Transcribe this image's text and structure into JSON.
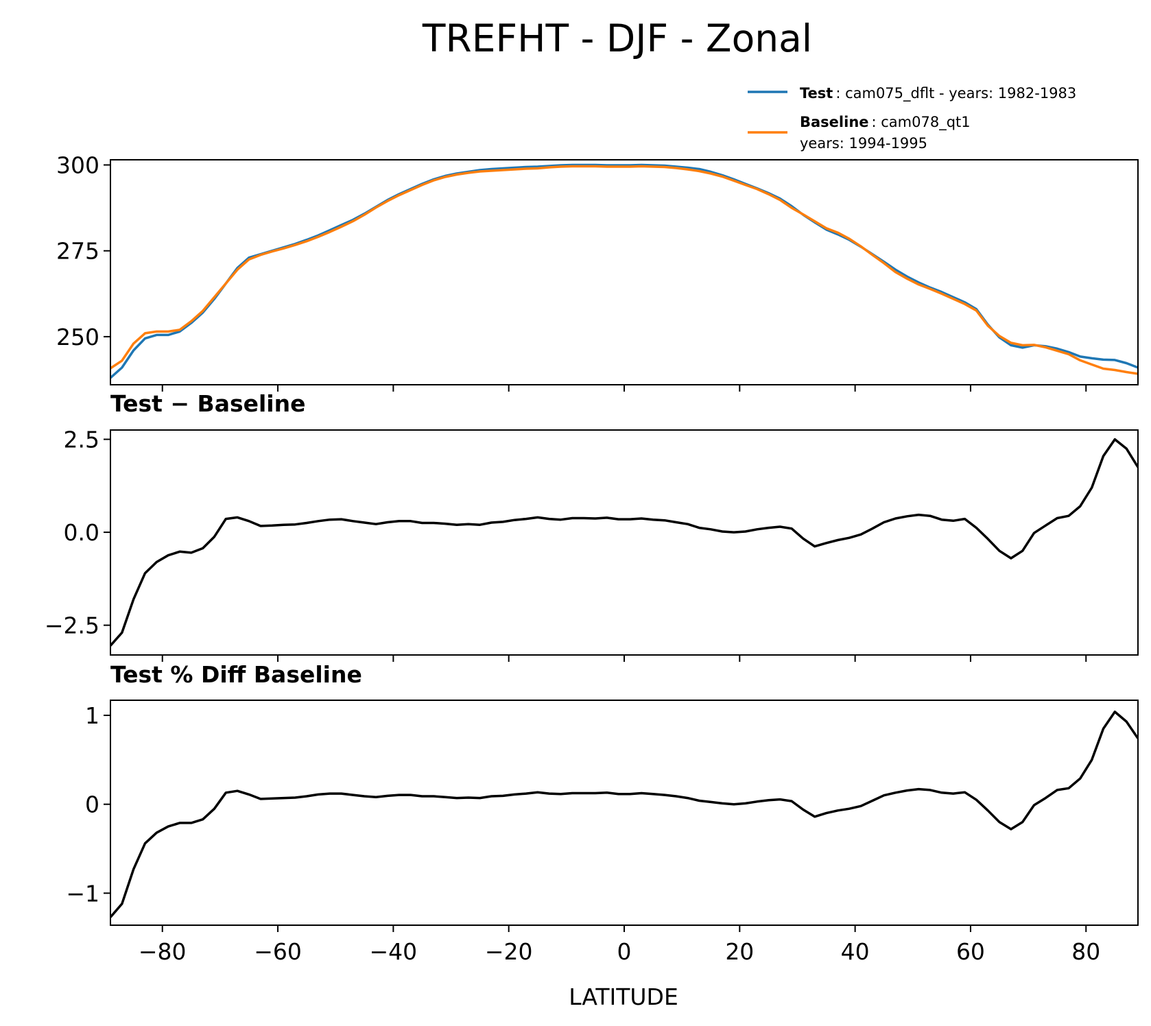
{
  "title": "TREFHT - DJF - Zonal",
  "xlabel": "LATITUDE",
  "colors": {
    "test": "#1f77b4",
    "baseline": "#ff7f0e",
    "diff": "#000000"
  },
  "legend": [
    {
      "bold": "Test",
      "rest": ": cam075_dflt - years: 1982-1983",
      "extra": ""
    },
    {
      "bold": "Baseline",
      "rest": ": cam078_qt1",
      "extra": "years: 1994-1995"
    }
  ],
  "chart_data": [
    {
      "type": "line",
      "name": "zonal-mean",
      "title": "",
      "xlabel": "",
      "ylabel": "",
      "xlim": [
        -89,
        89
      ],
      "ylim": [
        236,
        301.5
      ],
      "xticks": [
        -80,
        -60,
        -40,
        -20,
        0,
        20,
        40,
        60,
        80
      ],
      "yticks": [
        250,
        275,
        300
      ],
      "ytick_labels": [
        "250",
        "275",
        "300"
      ],
      "x": [
        -89,
        -87,
        -85,
        -83,
        -81,
        -79,
        -77,
        -75,
        -73,
        -71,
        -69,
        -67,
        -65,
        -63,
        -61,
        -59,
        -57,
        -55,
        -53,
        -51,
        -49,
        -47,
        -45,
        -43,
        -41,
        -39,
        -37,
        -35,
        -33,
        -31,
        -29,
        -27,
        -25,
        -23,
        -21,
        -19,
        -17,
        -15,
        -13,
        -11,
        -9,
        -7,
        -5,
        -3,
        -1,
        1,
        3,
        5,
        7,
        9,
        11,
        13,
        15,
        17,
        19,
        21,
        23,
        25,
        27,
        29,
        31,
        33,
        35,
        37,
        39,
        41,
        43,
        45,
        47,
        49,
        51,
        53,
        55,
        57,
        59,
        61,
        63,
        65,
        67,
        69,
        71,
        73,
        75,
        77,
        79,
        81,
        83,
        85,
        87,
        89
      ],
      "series": [
        {
          "name": "Test",
          "values": [
            238,
            241,
            246,
            249.5,
            250.5,
            250.5,
            251.5,
            254,
            257,
            261,
            265.5,
            270,
            273,
            274,
            275,
            276,
            277,
            278.2,
            279.5,
            281,
            282.5,
            284,
            285.8,
            287.8,
            289.8,
            291.5,
            293,
            294.5,
            295.8,
            296.8,
            297.5,
            298,
            298.5,
            298.8,
            299,
            299.2,
            299.4,
            299.5,
            299.7,
            299.9,
            300,
            300,
            300,
            299.9,
            299.9,
            299.9,
            300,
            299.9,
            299.8,
            299.5,
            299.2,
            298.8,
            298,
            297,
            295.8,
            294.5,
            293.2,
            291.8,
            290.2,
            288,
            285.5,
            283.3,
            281.2,
            279.8,
            278.2,
            276.2,
            274,
            271.8,
            269.5,
            267.5,
            265.8,
            264.3,
            263,
            261.5,
            260,
            258,
            253.5,
            249.8,
            247.5,
            246.8,
            247.5,
            247.2,
            246.5,
            245.5,
            244.2,
            243.7,
            243.3,
            243.2,
            242.3,
            241
          ]
        },
        {
          "name": "Baseline",
          "values": [
            240.8,
            243,
            248,
            251,
            251.5,
            251.5,
            252,
            254.5,
            257.5,
            261.5,
            265.5,
            269.5,
            272.5,
            273.8,
            274.8,
            275.7,
            276.7,
            277.8,
            279.1,
            280.5,
            282,
            283.6,
            285.5,
            287.6,
            289.5,
            291.2,
            292.7,
            294.2,
            295.5,
            296.5,
            297.2,
            297.7,
            298.1,
            298.3,
            298.5,
            298.7,
            298.9,
            299,
            299.3,
            299.5,
            299.6,
            299.6,
            299.6,
            299.5,
            299.5,
            299.5,
            299.6,
            299.5,
            299.4,
            299.1,
            298.7,
            298.2,
            297.5,
            296.6,
            295.4,
            294.2,
            293,
            291.5,
            289.8,
            287.5,
            285.6,
            283.6,
            281.6,
            280.3,
            278.5,
            276.3,
            273.8,
            271.4,
            268.8,
            266.9,
            265.2,
            263.9,
            262.5,
            261,
            259.5,
            257.6,
            253.2,
            250.2,
            248.2,
            247.5,
            247.6,
            246.9,
            245.9,
            244.9,
            243.1,
            241.9,
            240.7,
            240.3,
            239.7,
            239.2
          ]
        }
      ]
    },
    {
      "type": "line",
      "name": "test-minus-baseline",
      "title": "Test − Baseline",
      "xlabel": "",
      "ylabel": "",
      "xlim": [
        -89,
        89
      ],
      "ylim": [
        -3.3,
        2.75
      ],
      "xticks": [
        -80,
        -60,
        -40,
        -20,
        0,
        20,
        40,
        60,
        80
      ],
      "yticks": [
        -2.5,
        0.0,
        2.5
      ],
      "ytick_labels": [
        "−2.5",
        "0.0",
        "2.5"
      ],
      "x": [
        -89,
        -87,
        -85,
        -83,
        -81,
        -79,
        -77,
        -75,
        -73,
        -71,
        -69,
        -67,
        -65,
        -63,
        -61,
        -59,
        -57,
        -55,
        -53,
        -51,
        -49,
        -47,
        -45,
        -43,
        -41,
        -39,
        -37,
        -35,
        -33,
        -31,
        -29,
        -27,
        -25,
        -23,
        -21,
        -19,
        -17,
        -15,
        -13,
        -11,
        -9,
        -7,
        -5,
        -3,
        -1,
        1,
        3,
        5,
        7,
        9,
        11,
        13,
        15,
        17,
        19,
        21,
        23,
        25,
        27,
        29,
        31,
        33,
        35,
        37,
        39,
        41,
        43,
        45,
        47,
        49,
        51,
        53,
        55,
        57,
        59,
        61,
        63,
        65,
        67,
        69,
        71,
        73,
        75,
        77,
        79,
        81,
        83,
        85,
        87,
        89
      ],
      "series": [
        {
          "name": "Test − Baseline",
          "values": [
            -3.05,
            -2.7,
            -1.8,
            -1.1,
            -0.8,
            -0.62,
            -0.52,
            -0.55,
            -0.43,
            -0.12,
            0.36,
            0.4,
            0.3,
            0.17,
            0.18,
            0.2,
            0.21,
            0.25,
            0.3,
            0.34,
            0.35,
            0.3,
            0.26,
            0.22,
            0.27,
            0.3,
            0.3,
            0.25,
            0.25,
            0.23,
            0.2,
            0.22,
            0.2,
            0.26,
            0.28,
            0.33,
            0.36,
            0.4,
            0.36,
            0.34,
            0.38,
            0.38,
            0.37,
            0.39,
            0.35,
            0.35,
            0.37,
            0.34,
            0.32,
            0.27,
            0.22,
            0.12,
            0.08,
            0.02,
            0.0,
            0.02,
            0.08,
            0.12,
            0.15,
            0.1,
            -0.17,
            -0.38,
            -0.29,
            -0.21,
            -0.15,
            -0.06,
            0.1,
            0.27,
            0.37,
            0.43,
            0.47,
            0.44,
            0.34,
            0.31,
            0.36,
            0.12,
            -0.18,
            -0.5,
            -0.7,
            -0.5,
            -0.02,
            0.18,
            0.38,
            0.44,
            0.7,
            1.2,
            2.05,
            2.5,
            2.25,
            1.75
          ]
        }
      ]
    },
    {
      "type": "line",
      "name": "test-pct-diff-baseline",
      "title": "Test % Diff Baseline",
      "xlabel": "LATITUDE",
      "ylabel": "",
      "xlim": [
        -89,
        89
      ],
      "ylim": [
        -1.36,
        1.17
      ],
      "xticks": [
        -80,
        -60,
        -40,
        -20,
        0,
        20,
        40,
        60,
        80
      ],
      "xtick_labels": [
        "−80",
        "−60",
        "−40",
        "−20",
        "0",
        "20",
        "40",
        "60",
        "80"
      ],
      "yticks": [
        -1,
        0,
        1
      ],
      "ytick_labels": [
        "−1",
        "0",
        "1"
      ],
      "x": [
        -89,
        -87,
        -85,
        -83,
        -81,
        -79,
        -77,
        -75,
        -73,
        -71,
        -69,
        -67,
        -65,
        -63,
        -61,
        -59,
        -57,
        -55,
        -53,
        -51,
        -49,
        -47,
        -45,
        -43,
        -41,
        -39,
        -37,
        -35,
        -33,
        -31,
        -29,
        -27,
        -25,
        -23,
        -21,
        -19,
        -17,
        -15,
        -13,
        -11,
        -9,
        -7,
        -5,
        -3,
        -1,
        1,
        3,
        5,
        7,
        9,
        11,
        13,
        15,
        17,
        19,
        21,
        23,
        25,
        27,
        29,
        31,
        33,
        35,
        37,
        39,
        41,
        43,
        45,
        47,
        49,
        51,
        53,
        55,
        57,
        59,
        61,
        63,
        65,
        67,
        69,
        71,
        73,
        75,
        77,
        79,
        81,
        83,
        85,
        87,
        89
      ],
      "series": [
        {
          "name": "Test % Diff Baseline",
          "values": [
            -1.27,
            -1.12,
            -0.73,
            -0.44,
            -0.32,
            -0.25,
            -0.21,
            -0.21,
            -0.17,
            -0.05,
            0.13,
            0.15,
            0.11,
            0.06,
            0.065,
            0.07,
            0.075,
            0.09,
            0.11,
            0.12,
            0.12,
            0.105,
            0.09,
            0.08,
            0.095,
            0.105,
            0.105,
            0.09,
            0.09,
            0.08,
            0.07,
            0.075,
            0.07,
            0.09,
            0.095,
            0.11,
            0.12,
            0.135,
            0.12,
            0.115,
            0.125,
            0.125,
            0.125,
            0.13,
            0.115,
            0.115,
            0.125,
            0.115,
            0.105,
            0.09,
            0.07,
            0.04,
            0.025,
            0.01,
            0.0,
            0.01,
            0.03,
            0.045,
            0.055,
            0.035,
            -0.06,
            -0.14,
            -0.1,
            -0.07,
            -0.05,
            -0.02,
            0.04,
            0.1,
            0.13,
            0.155,
            0.17,
            0.16,
            0.13,
            0.12,
            0.135,
            0.05,
            -0.07,
            -0.2,
            -0.28,
            -0.2,
            -0.01,
            0.07,
            0.16,
            0.18,
            0.29,
            0.5,
            0.85,
            1.04,
            0.93,
            0.74
          ]
        }
      ]
    }
  ]
}
